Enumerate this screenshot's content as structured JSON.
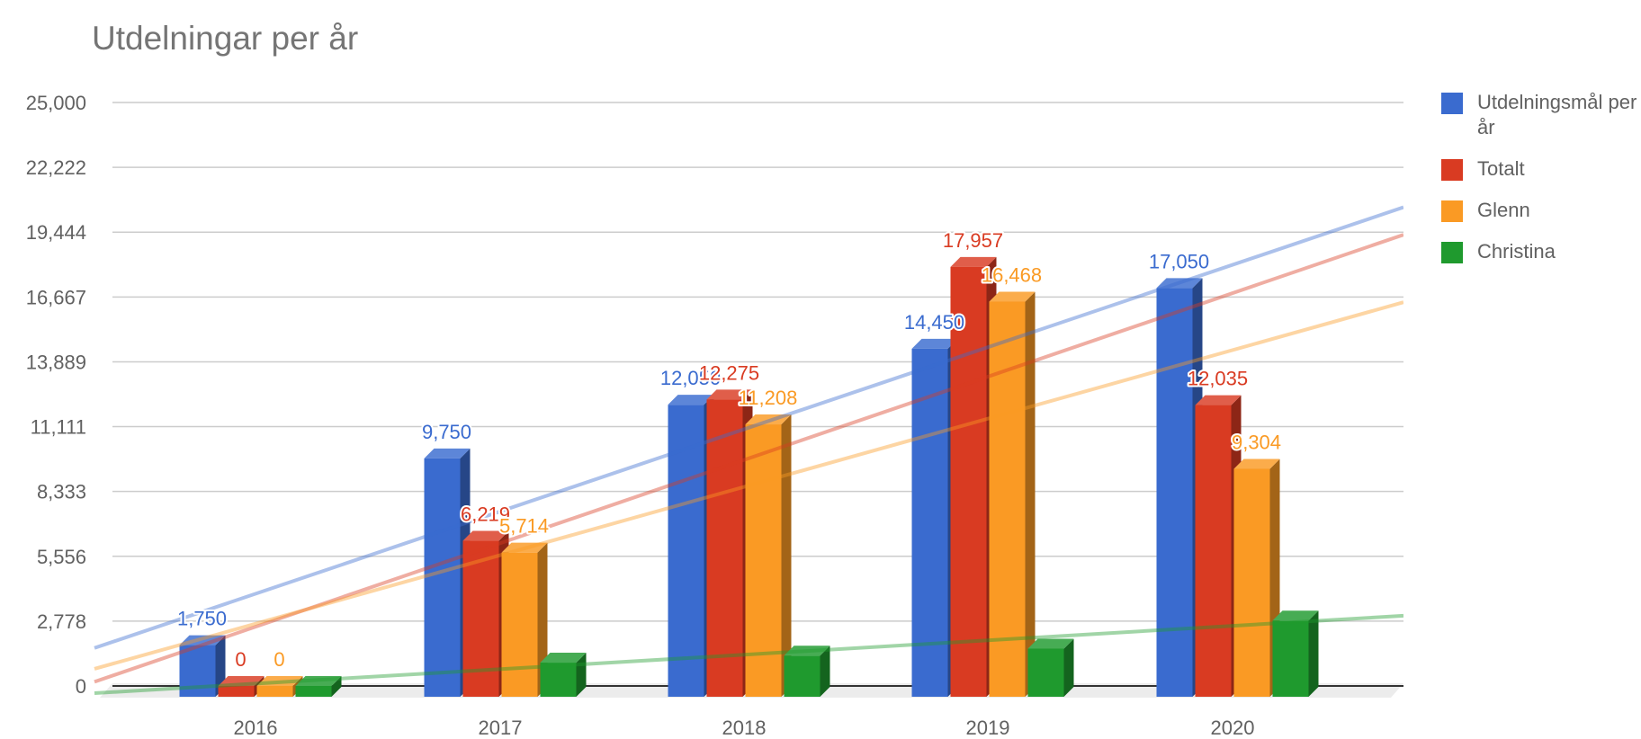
{
  "chart_data": {
    "type": "bar",
    "title": "Utdelningar per år",
    "categories": [
      "2016",
      "2017",
      "2018",
      "2019",
      "2020"
    ],
    "series": [
      {
        "name": "Utdelningsmål per år",
        "color": "#3a6bcf",
        "values": [
          1750,
          9750,
          12050,
          14450,
          17050
        ],
        "labels": [
          "1,750",
          "9,750",
          "12,050",
          "14,450",
          "17,050"
        ]
      },
      {
        "name": "Totalt",
        "color": "#d93b22",
        "values": [
          0,
          6219,
          12275,
          17957,
          12035
        ],
        "labels": [
          "0",
          "6,219",
          "12,275",
          "17,957",
          "12,035"
        ]
      },
      {
        "name": "Glenn",
        "color": "#fa9a24",
        "values": [
          0,
          5714,
          11208,
          16468,
          9304
        ],
        "labels": [
          "0",
          "5,714",
          "11,208",
          "16,468",
          "9,304"
        ]
      },
      {
        "name": "Christina",
        "color": "#1f9a2e",
        "values": [
          0,
          1000,
          1300,
          1600,
          2800
        ],
        "labels": []
      }
    ],
    "yticks": [
      0,
      2778,
      5556,
      8333,
      11111,
      13889,
      16667,
      19444,
      22222,
      25000
    ],
    "ytick_labels": [
      "0",
      "2,778",
      "5,556",
      "8,333",
      "11,111",
      "13,889",
      "16,667",
      "19,444",
      "22,222",
      "25,000"
    ],
    "ylim": [
      0,
      25000
    ],
    "grid": true,
    "legend_position": "right",
    "trendlines": true,
    "style": "3d"
  }
}
